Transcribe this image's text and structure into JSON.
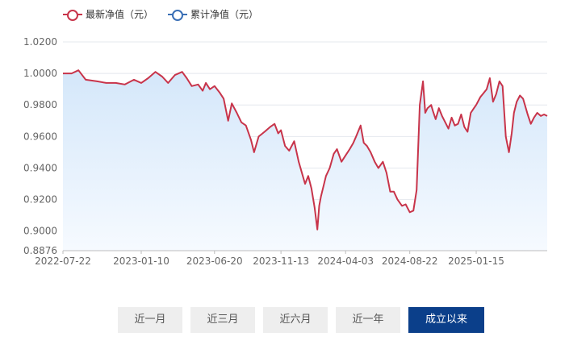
{
  "legend": [
    {
      "label": "最新净值（元）",
      "color": "#c8344a"
    },
    {
      "label": "累计净值（元）",
      "color": "#3a6fb5"
    }
  ],
  "buttons": [
    {
      "label": "近一月",
      "active": false
    },
    {
      "label": "近三月",
      "active": false
    },
    {
      "label": "近六月",
      "active": false
    },
    {
      "label": "近一年",
      "active": false
    },
    {
      "label": "成立以来",
      "active": true
    }
  ],
  "colors": {
    "line": "#c8344a",
    "area_top": "#d4e7fa",
    "area_bottom": "#f6faff",
    "grid": "#e4e8ee",
    "axis_text": "#666666",
    "active_button": "#0b3f8a"
  },
  "chart_data": {
    "type": "line",
    "ylim": [
      0.8876,
      1.02
    ],
    "yticks": [
      "1.0200",
      "1.0000",
      "0.9800",
      "0.9600",
      "0.9400",
      "0.9200",
      "0.9000",
      "0.8876"
    ],
    "xticks": [
      "2022-07-22",
      "2023-01-10",
      "2023-06-20",
      "2023-11-13",
      "2024-04-03",
      "2024-08-22",
      "2025-01-15"
    ],
    "series": [
      {
        "name": "最新净值（元）",
        "x": [
          "2022-07-22",
          "2022-08-10",
          "2022-08-25",
          "2022-09-10",
          "2022-10-05",
          "2022-10-25",
          "2022-11-15",
          "2022-12-05",
          "2022-12-25",
          "2023-01-10",
          "2023-01-25",
          "2023-02-10",
          "2023-02-25",
          "2023-03-10",
          "2023-03-25",
          "2023-04-10",
          "2023-04-20",
          "2023-05-01",
          "2023-05-15",
          "2023-05-25",
          "2023-06-01",
          "2023-06-10",
          "2023-06-20",
          "2023-07-01",
          "2023-07-10",
          "2023-07-20",
          "2023-07-28",
          "2023-08-08",
          "2023-08-18",
          "2023-08-28",
          "2023-09-08",
          "2023-09-15",
          "2023-09-25",
          "2023-10-08",
          "2023-10-20",
          "2023-10-30",
          "2023-11-07",
          "2023-11-13",
          "2023-11-22",
          "2023-12-01",
          "2023-12-12",
          "2023-12-22",
          "2024-01-05",
          "2024-01-12",
          "2024-01-19",
          "2024-01-26",
          "2024-02-01",
          "2024-02-05",
          "2024-02-09",
          "2024-02-20",
          "2024-02-28",
          "2024-03-08",
          "2024-03-15",
          "2024-03-25",
          "2024-04-03",
          "2024-04-12",
          "2024-04-20",
          "2024-04-26",
          "2024-05-06",
          "2024-05-13",
          "2024-05-20",
          "2024-05-28",
          "2024-06-06",
          "2024-06-14",
          "2024-06-24",
          "2024-07-02",
          "2024-07-10",
          "2024-07-18",
          "2024-07-26",
          "2024-08-05",
          "2024-08-13",
          "2024-08-22",
          "2024-08-30",
          "2024-09-06",
          "2024-09-13",
          "2024-09-20",
          "2024-09-25",
          "2024-09-30",
          "2024-10-08",
          "2024-10-12",
          "2024-10-18",
          "2024-10-25",
          "2024-11-01",
          "2024-11-08",
          "2024-11-15",
          "2024-11-22",
          "2024-11-29",
          "2024-12-06",
          "2024-12-13",
          "2024-12-20",
          "2024-12-27",
          "2025-01-03",
          "2025-01-10",
          "2025-01-15",
          "2025-01-24",
          "2025-02-07",
          "2025-02-14",
          "2025-02-21",
          "2025-02-28",
          "2025-03-07",
          "2025-03-14",
          "2025-03-21",
          "2025-03-28",
          "2025-04-03",
          "2025-04-08",
          "2025-04-14",
          "2025-04-21",
          "2025-04-28",
          "2025-05-08",
          "2025-05-15",
          "2025-05-22",
          "2025-05-29",
          "2025-06-06",
          "2025-06-13",
          "2025-06-20"
        ],
        "y": [
          1.0,
          1.0,
          1.002,
          0.996,
          0.995,
          0.994,
          0.994,
          0.993,
          0.996,
          0.994,
          0.997,
          1.001,
          0.998,
          0.994,
          0.999,
          1.001,
          0.997,
          0.992,
          0.993,
          0.989,
          0.994,
          0.99,
          0.992,
          0.988,
          0.984,
          0.97,
          0.981,
          0.975,
          0.969,
          0.967,
          0.958,
          0.95,
          0.96,
          0.963,
          0.966,
          0.968,
          0.962,
          0.964,
          0.954,
          0.951,
          0.957,
          0.944,
          0.93,
          0.935,
          0.927,
          0.915,
          0.901,
          0.916,
          0.922,
          0.935,
          0.94,
          0.949,
          0.952,
          0.944,
          0.948,
          0.952,
          0.956,
          0.96,
          0.967,
          0.956,
          0.954,
          0.95,
          0.944,
          0.94,
          0.944,
          0.937,
          0.925,
          0.925,
          0.92,
          0.916,
          0.917,
          0.912,
          0.913,
          0.926,
          0.98,
          0.995,
          0.975,
          0.978,
          0.98,
          0.976,
          0.971,
          0.978,
          0.973,
          0.969,
          0.965,
          0.972,
          0.967,
          0.968,
          0.974,
          0.966,
          0.963,
          0.975,
          0.978,
          0.98,
          0.985,
          0.99,
          0.997,
          0.982,
          0.987,
          0.995,
          0.992,
          0.96,
          0.95,
          0.962,
          0.975,
          0.982,
          0.986,
          0.984,
          0.974,
          0.968,
          0.972,
          0.975,
          0.973,
          0.974,
          0.973
        ]
      }
    ]
  }
}
